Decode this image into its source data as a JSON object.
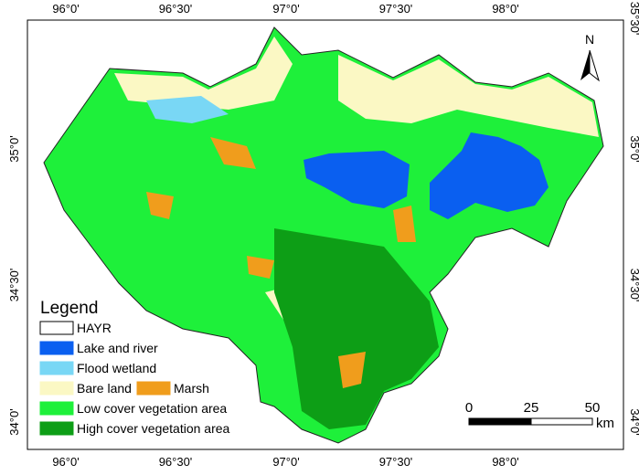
{
  "map": {
    "top_labels": [
      "96°0'",
      "96°30'",
      "97°0'",
      "97°30'",
      "98°0'"
    ],
    "bottom_labels": [
      "96°0'",
      "96°30'",
      "97°0'",
      "97°30'",
      "98°0'"
    ],
    "left_labels": [
      "35°0'",
      "34°30'",
      "34°0'"
    ],
    "right_labels": [
      "35°30'",
      "35°0'",
      "34°30'",
      "34°0'"
    ],
    "north": "N",
    "legend": {
      "title": "Legend",
      "items": [
        {
          "label": "HAYR",
          "color": "#ffffff"
        },
        {
          "label": "Lake and river",
          "color": "#0a5ff0"
        },
        {
          "label": "Flood wetland",
          "color": "#79d7f5"
        },
        {
          "label": "Bare land",
          "color": "#fbf8c4"
        },
        {
          "label": "Marsh",
          "color": "#f09d1c"
        },
        {
          "label": "Low cover vegetation area",
          "color": "#1ef03a"
        },
        {
          "label": "High cover vegetation area",
          "color": "#0d9e16"
        }
      ]
    },
    "scale_bar": {
      "ticks": [
        "0",
        "25",
        "50"
      ],
      "unit": "km"
    }
  }
}
